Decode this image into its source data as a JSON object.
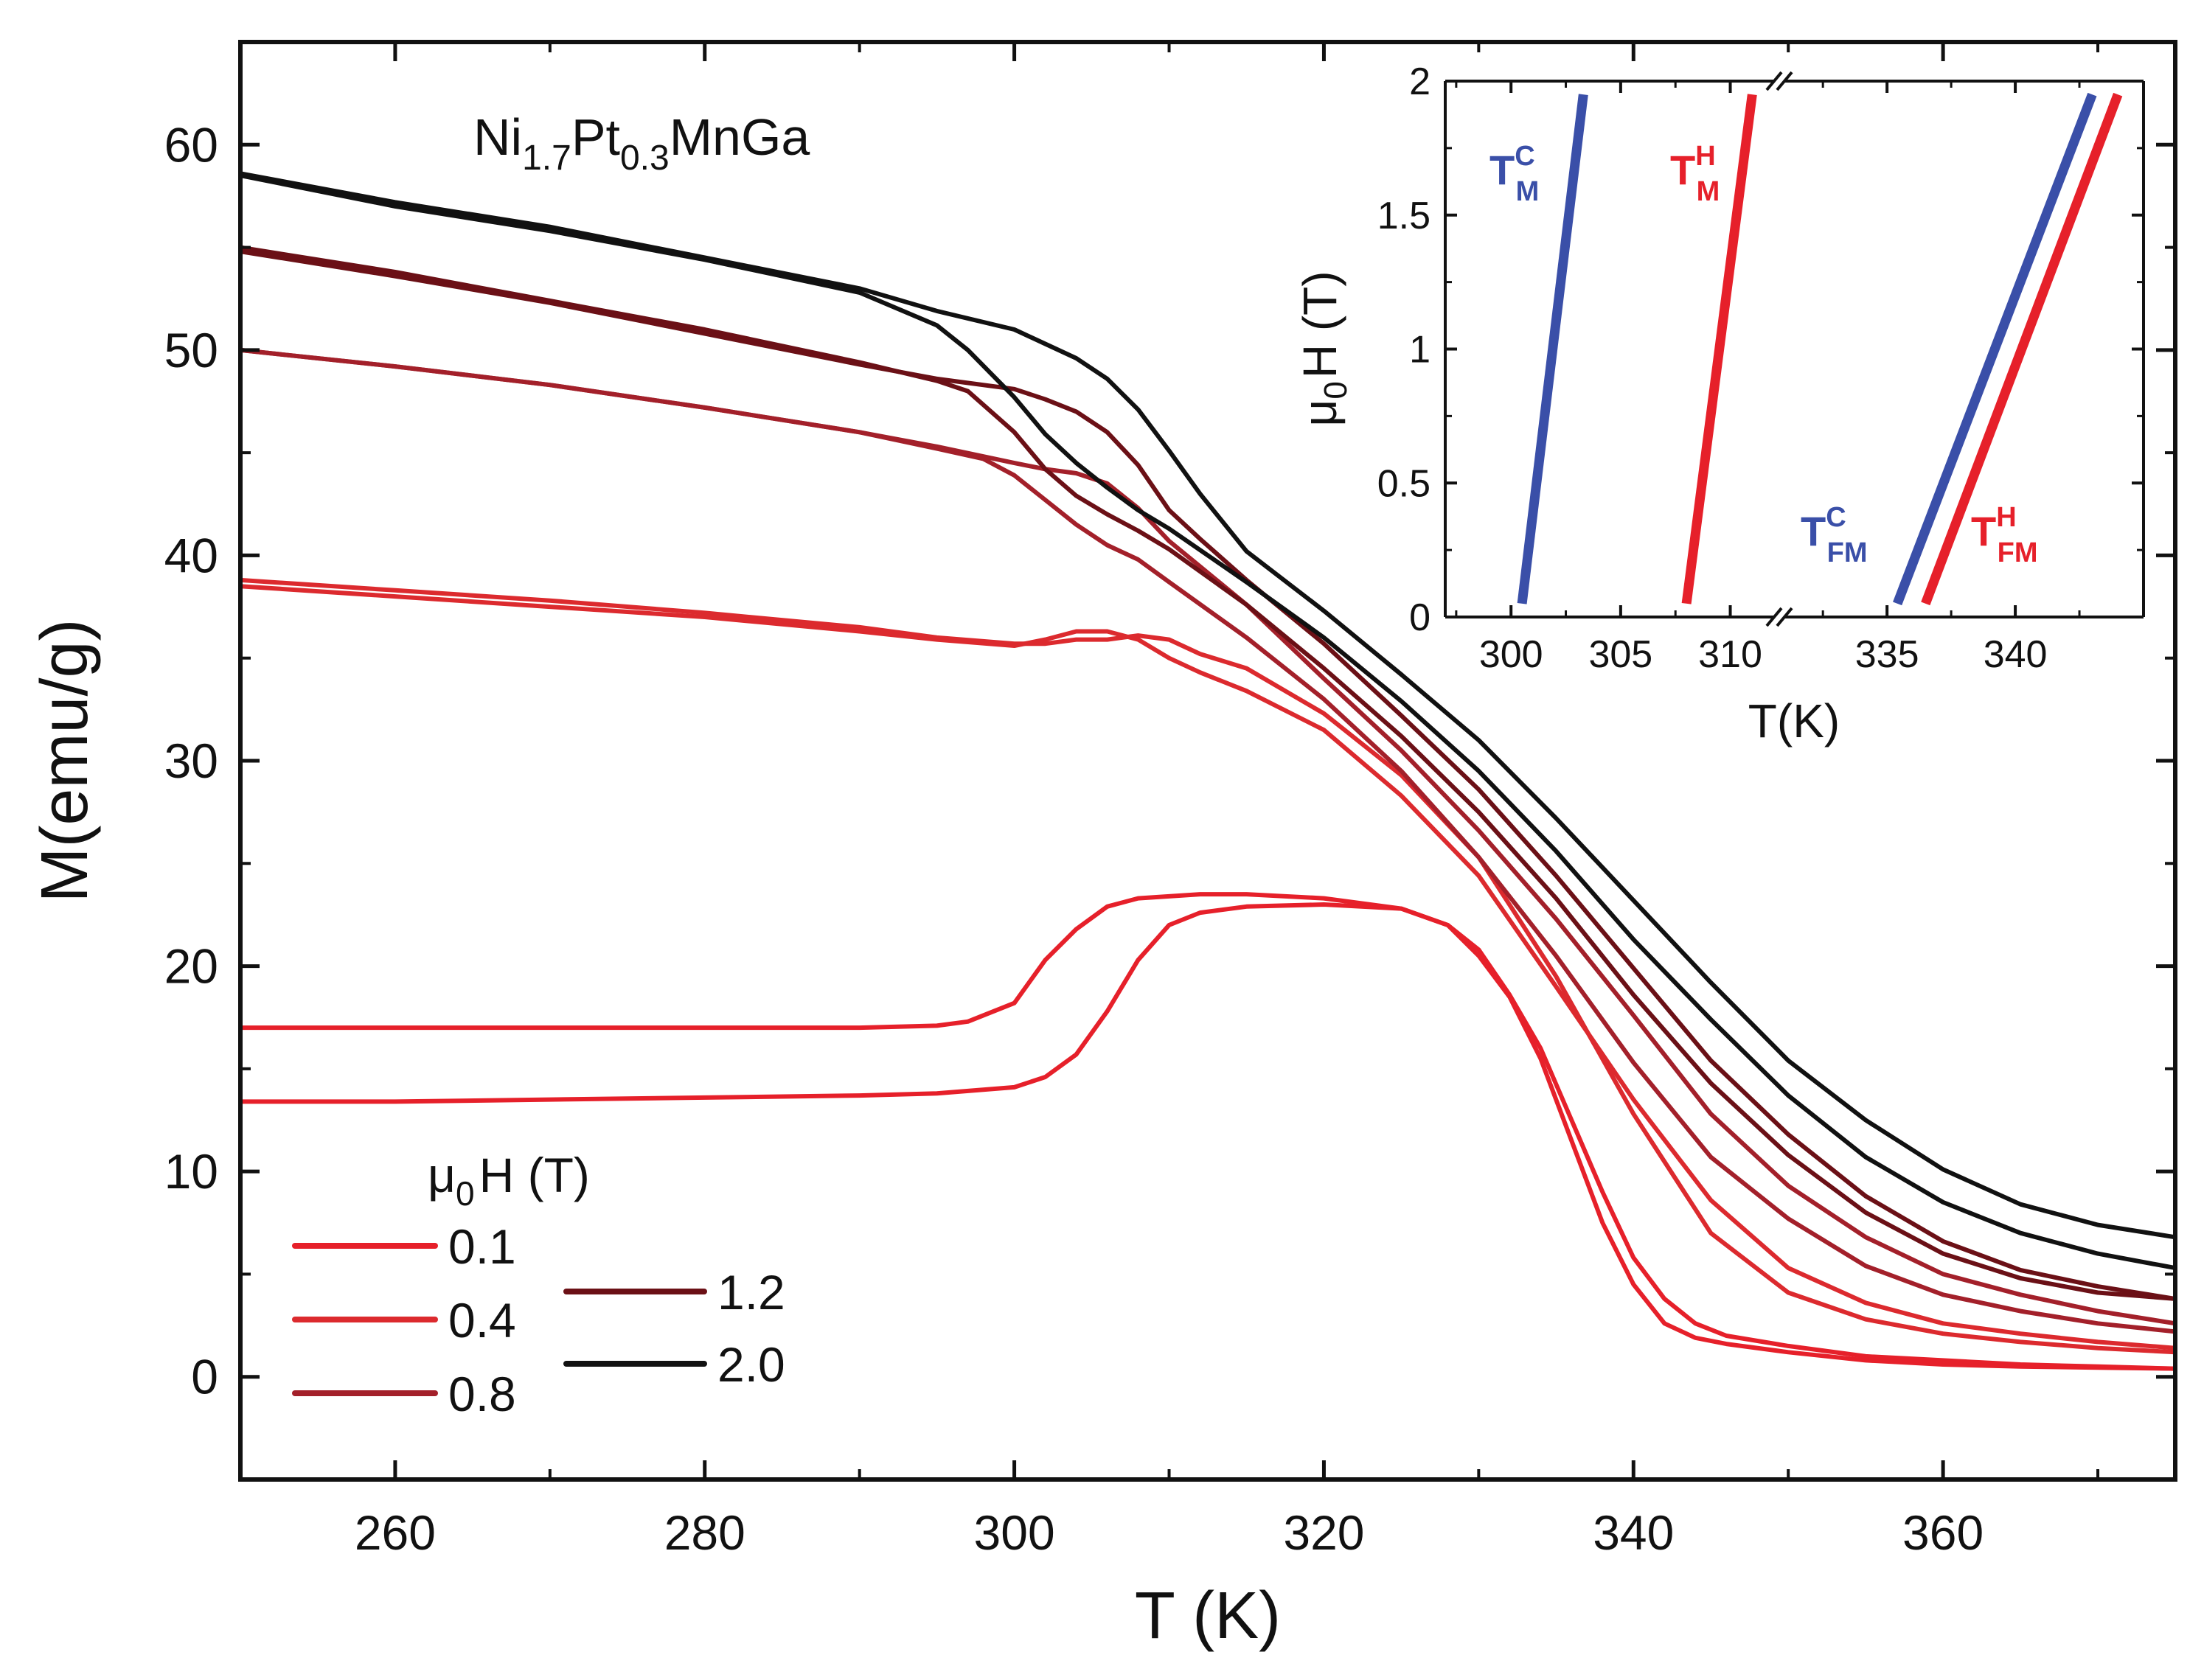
{
  "chart_data": [
    {
      "type": "line",
      "title": "",
      "xlabel": "T (K)",
      "ylabel": "M(emu/g)",
      "xlim": [
        250,
        375
      ],
      "ylim": [
        -5,
        65
      ],
      "xticks": [
        260,
        280,
        300,
        320,
        340,
        360
      ],
      "yticks": [
        0,
        10,
        20,
        30,
        40,
        50,
        60
      ],
      "sample_label": {
        "base1": "Ni",
        "sub1": "1.7",
        "base2": "Pt",
        "sub2": "0.3",
        "base3": "MnGa"
      },
      "legend": {
        "title_mu": "μ",
        "title_sub": "0",
        "title_rest": "H (T)",
        "location": "bottom-left"
      },
      "series": [
        {
          "name": "0.1",
          "color": "#e6202a",
          "cooling": {
            "x": [
              250,
              260,
              270,
              280,
              290,
              295,
              297,
              300,
              302,
              304,
              306,
              308,
              310,
              312,
              315,
              320,
              325,
              328,
              330,
              332,
              334,
              336,
              338,
              340,
              342,
              344,
              346,
              350,
              355,
              360,
              365,
              370,
              375
            ],
            "y": [
              17.0,
              17.0,
              17.0,
              17.0,
              17.0,
              17.1,
              17.3,
              18.2,
              20.3,
              21.8,
              22.9,
              23.3,
              23.4,
              23.5,
              23.5,
              23.3,
              22.8,
              22.0,
              20.5,
              18.5,
              15.5,
              11.5,
              7.5,
              4.5,
              2.6,
              1.9,
              1.6,
              1.2,
              0.8,
              0.6,
              0.5,
              0.45,
              0.4
            ]
          },
          "heating": {
            "x": [
              250,
              260,
              270,
              280,
              290,
              295,
              300,
              302,
              304,
              306,
              308,
              310,
              312,
              315,
              320,
              325,
              328,
              330,
              332,
              334,
              336,
              338,
              340,
              342,
              344,
              346,
              350,
              355,
              360,
              365,
              370,
              375
            ],
            "y": [
              13.4,
              13.4,
              13.5,
              13.6,
              13.7,
              13.8,
              14.1,
              14.6,
              15.7,
              17.8,
              20.3,
              22.0,
              22.6,
              22.9,
              23.0,
              22.8,
              22.0,
              20.8,
              18.6,
              16.0,
              12.5,
              9.0,
              5.8,
              3.8,
              2.6,
              2.0,
              1.5,
              1.0,
              0.8,
              0.6,
              0.5,
              0.4
            ]
          }
        },
        {
          "name": "0.4",
          "color": "#dc2a2e",
          "cooling": {
            "x": [
              250,
              260,
              270,
              280,
              290,
              295,
              300,
              302,
              304,
              306,
              308,
              310,
              312,
              315,
              320,
              325,
              330,
              335,
              340,
              345,
              350,
              355,
              360,
              365,
              370,
              375
            ],
            "y": [
              38.8,
              38.3,
              37.8,
              37.2,
              36.5,
              36.0,
              35.7,
              35.7,
              35.9,
              35.9,
              36.1,
              35.9,
              35.2,
              34.5,
              32.3,
              29.3,
              25.3,
              19.5,
              12.8,
              7.0,
              4.1,
              2.8,
              2.1,
              1.7,
              1.4,
              1.2
            ]
          },
          "heating": {
            "x": [
              250,
              260,
              270,
              280,
              290,
              295,
              300,
              302,
              304,
              306,
              308,
              310,
              312,
              315,
              320,
              325,
              330,
              335,
              340,
              345,
              350,
              355,
              360,
              365,
              370,
              375
            ],
            "y": [
              38.5,
              38.0,
              37.5,
              37.0,
              36.3,
              35.9,
              35.6,
              35.9,
              36.3,
              36.3,
              35.9,
              35.0,
              34.3,
              33.4,
              31.5,
              28.3,
              24.4,
              19.0,
              13.5,
              8.6,
              5.3,
              3.6,
              2.6,
              2.1,
              1.7,
              1.4
            ]
          }
        },
        {
          "name": "0.8",
          "color": "#a3202a",
          "cooling": {
            "x": [
              250,
              260,
              270,
              280,
              290,
              295,
              298,
              300,
              302,
              304,
              306,
              308,
              310,
              315,
              320,
              325,
              330,
              335,
              340,
              345,
              350,
              355,
              360,
              365,
              370,
              375
            ],
            "y": [
              50.0,
              49.2,
              48.3,
              47.2,
              46.0,
              45.2,
              44.7,
              43.9,
              42.7,
              41.5,
              40.5,
              39.8,
              38.7,
              36.0,
              33.0,
              29.5,
              25.3,
              20.5,
              15.3,
              10.7,
              7.7,
              5.4,
              4.0,
              3.2,
              2.6,
              2.2
            ]
          },
          "heating": {
            "x": [
              250,
              260,
              270,
              280,
              290,
              295,
              300,
              302,
              304,
              306,
              308,
              310,
              315,
              320,
              325,
              330,
              335,
              340,
              345,
              350,
              355,
              360,
              365,
              370,
              375
            ],
            "y": [
              50.0,
              49.2,
              48.3,
              47.2,
              46.0,
              45.3,
              44.5,
              44.2,
              44.0,
              43.5,
              42.3,
              40.7,
              37.6,
              34.0,
              30.5,
              26.6,
              22.3,
              17.6,
              12.8,
              9.3,
              6.8,
              5.0,
              4.0,
              3.2,
              2.6
            ]
          }
        },
        {
          "name": "1.2",
          "color": "#6b1016",
          "cooling": {
            "x": [
              250,
              260,
              270,
              280,
              290,
              295,
              297,
              300,
              302,
              304,
              306,
              308,
              310,
              315,
              320,
              325,
              330,
              335,
              340,
              345,
              350,
              355,
              360,
              365,
              370,
              375
            ],
            "y": [
              55.0,
              53.8,
              52.4,
              51.0,
              49.4,
              48.5,
              48.0,
              46.0,
              44.2,
              42.9,
              42.0,
              41.2,
              40.3,
              37.6,
              34.5,
              31.2,
              27.5,
              23.3,
              18.6,
              14.3,
              10.8,
              8.0,
              6.0,
              4.8,
              4.1,
              3.8
            ]
          },
          "heating": {
            "x": [
              250,
              260,
              270,
              280,
              290,
              295,
              300,
              302,
              304,
              306,
              308,
              310,
              312,
              315,
              320,
              325,
              330,
              335,
              340,
              345,
              350,
              355,
              360,
              365,
              370,
              375
            ],
            "y": [
              54.8,
              53.6,
              52.3,
              50.8,
              49.3,
              48.6,
              48.1,
              47.6,
              47.0,
              46.0,
              44.4,
              42.2,
              40.8,
              38.8,
              35.7,
              32.2,
              28.6,
              24.4,
              19.9,
              15.4,
              11.8,
              8.8,
              6.6,
              5.2,
              4.4,
              3.8
            ]
          }
        },
        {
          "name": "2.0",
          "color": "#111111",
          "cooling": {
            "x": [
              250,
              260,
              270,
              280,
              290,
              295,
              297,
              300,
              302,
              304,
              306,
              308,
              310,
              315,
              320,
              325,
              330,
              335,
              340,
              345,
              350,
              355,
              360,
              365,
              370,
              375
            ],
            "y": [
              58.5,
              57.0,
              55.8,
              54.4,
              52.8,
              51.2,
              50.0,
              47.7,
              45.9,
              44.5,
              43.3,
              42.2,
              41.3,
              38.7,
              36.0,
              32.9,
              29.5,
              25.6,
              21.3,
              17.4,
              13.7,
              10.7,
              8.5,
              7.0,
              6.0,
              5.3
            ]
          },
          "heating": {
            "x": [
              250,
              260,
              270,
              280,
              290,
              295,
              300,
              302,
              304,
              306,
              308,
              310,
              312,
              315,
              320,
              325,
              330,
              335,
              340,
              345,
              350,
              355,
              360,
              365,
              370,
              375
            ],
            "y": [
              58.6,
              57.2,
              56.0,
              54.5,
              53.0,
              51.9,
              51.0,
              50.3,
              49.6,
              48.6,
              47.1,
              45.1,
              43.0,
              40.2,
              37.3,
              34.2,
              31.0,
              27.2,
              23.2,
              19.2,
              15.4,
              12.5,
              10.1,
              8.4,
              7.4,
              6.8
            ]
          }
        }
      ]
    },
    {
      "type": "line",
      "title": "",
      "xlabel": "T(K)",
      "ylabel_mu": "μ",
      "ylabel_sub": "0",
      "ylabel_rest": "H (T)",
      "ylim": [
        0,
        2
      ],
      "yticks": [
        "0",
        "0.5",
        "1",
        "1.5",
        "2"
      ],
      "segments": [
        {
          "xlim": [
            297,
            312
          ],
          "xticks": [
            300,
            305,
            310
          ]
        },
        {
          "xlim": [
            331,
            345
          ],
          "xticks": [
            335,
            340
          ]
        }
      ],
      "series": [
        {
          "name": "T_M^C",
          "color": "#3a4fa8",
          "segment": 0,
          "x": [
            300.5,
            303.3
          ],
          "y": [
            0.05,
            1.95
          ]
        },
        {
          "name": "T_M^H",
          "color": "#e6202a",
          "segment": 0,
          "x": [
            308.0,
            311.0
          ],
          "y": [
            0.05,
            1.95
          ]
        },
        {
          "name": "T_FM^C",
          "color": "#3a4fa8",
          "segment": 1,
          "x": [
            335.4,
            343.0
          ],
          "y": [
            0.05,
            1.95
          ]
        },
        {
          "name": "T_FM^H",
          "color": "#e6202a",
          "segment": 1,
          "x": [
            336.5,
            344.0
          ],
          "y": [
            0.05,
            1.95
          ]
        }
      ],
      "annotations": [
        {
          "base": "T",
          "sup": "C",
          "sub": "M",
          "color": "#3a4fa8"
        },
        {
          "base": "T",
          "sup": "H",
          "sub": "M",
          "color": "#e6202a"
        },
        {
          "base": "T",
          "sup": "C",
          "sub": "FM",
          "color": "#3a4fa8"
        },
        {
          "base": "T",
          "sup": "H",
          "sub": "FM",
          "color": "#e6202a"
        }
      ]
    }
  ]
}
